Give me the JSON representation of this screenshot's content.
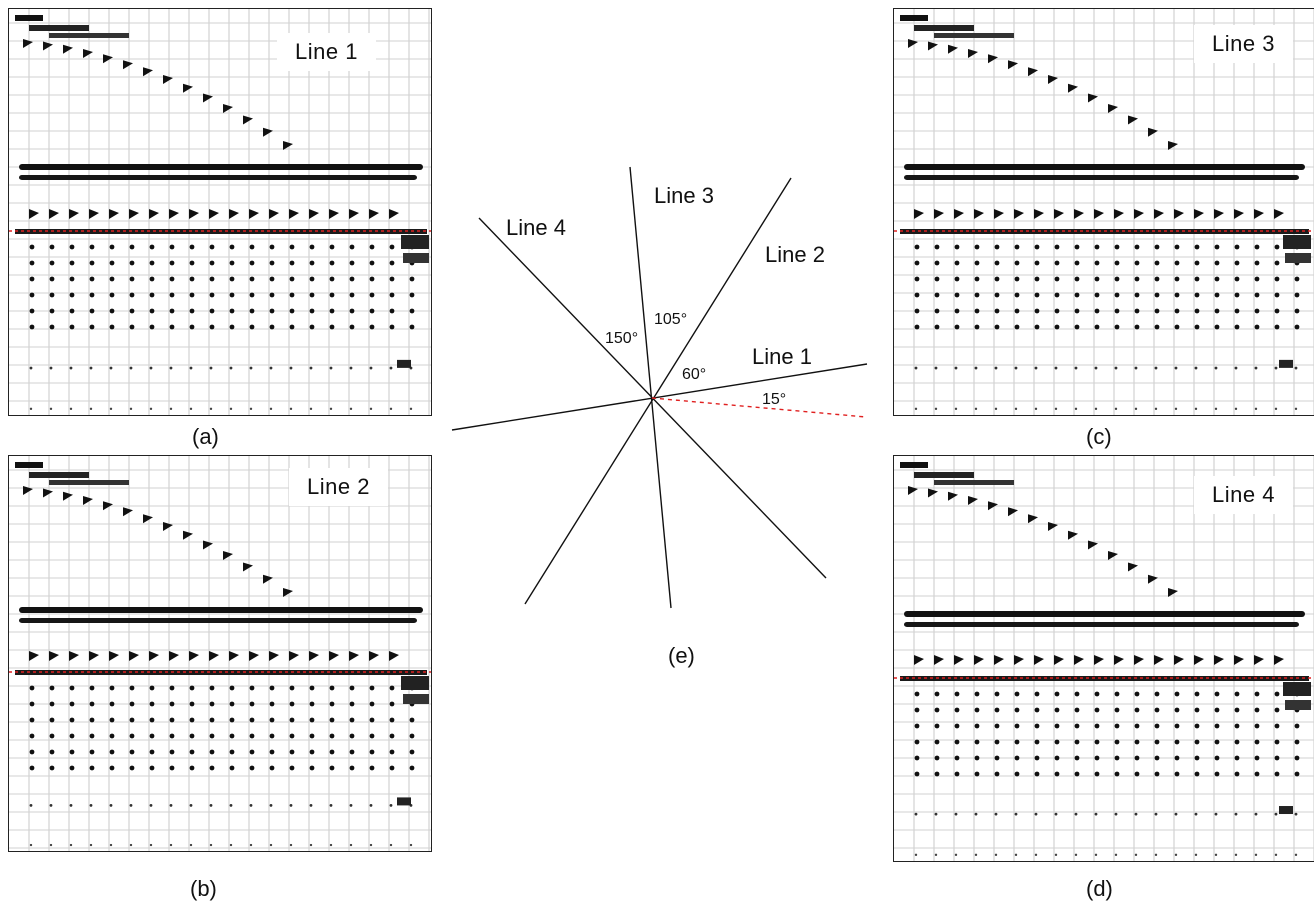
{
  "panels": [
    {
      "id": "a",
      "title": "Line 1",
      "caption": "(a)"
    },
    {
      "id": "b",
      "title": "Line 2",
      "caption": "(b)"
    },
    {
      "id": "c",
      "title": "Line 3",
      "caption": "(c)"
    },
    {
      "id": "d",
      "title": "Line 4",
      "caption": "(d)"
    }
  ],
  "diagram": {
    "caption": "(e)",
    "lines": [
      {
        "label": "Line 1",
        "angle_deg": 15
      },
      {
        "label": "Line 2",
        "angle_deg": 60
      },
      {
        "label": "Line 3",
        "angle_deg": 105
      },
      {
        "label": "Line 4",
        "angle_deg": 150
      }
    ],
    "angle_labels": [
      "15°",
      "60°",
      "105°",
      "150°"
    ],
    "reference_color": "#e02020"
  }
}
